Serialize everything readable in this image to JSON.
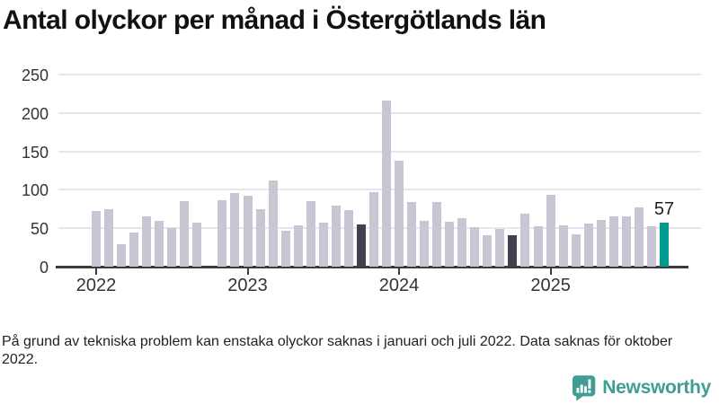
{
  "title": "Antal olyckor per månad i Östergötlands län",
  "footnote": "På grund av tekniska problem kan enstaka olyckor saknas i januari och juli 2022. Data saknas för oktober 2022.",
  "branding": {
    "logo_text": "Newsworthy",
    "logo_icon": "newsworthy-speech-bubble-bar-chart-icon",
    "logo_color": "#3f9d94"
  },
  "colors": {
    "bar_normal": "#c9c6d3",
    "bar_highlight_dark": "#423f50",
    "bar_current": "#009a90",
    "axis": "#3c3c3c",
    "grid": "#e7e6ea",
    "tick_label": "#333333"
  },
  "chart_data": {
    "type": "bar",
    "title": "Antal olyckor per månad i Östergötlands län",
    "xlabel": "",
    "ylabel": "",
    "ylim": [
      0,
      250
    ],
    "y_ticks": [
      0,
      50,
      100,
      150,
      200,
      250
    ],
    "x_tick_labels": [
      "2022",
      "2023",
      "2024",
      "2025"
    ],
    "grid": true,
    "legend": "none",
    "missing_months": [
      "2022-10"
    ],
    "annotation": {
      "month": "2025-10",
      "label": "57"
    },
    "months": [
      {
        "month": "2022-01",
        "value": 72,
        "highlight": "none"
      },
      {
        "month": "2022-02",
        "value": 75,
        "highlight": "none"
      },
      {
        "month": "2022-03",
        "value": 29,
        "highlight": "none"
      },
      {
        "month": "2022-04",
        "value": 44,
        "highlight": "none"
      },
      {
        "month": "2022-05",
        "value": 66,
        "highlight": "none"
      },
      {
        "month": "2022-06",
        "value": 59,
        "highlight": "none"
      },
      {
        "month": "2022-07",
        "value": 50,
        "highlight": "none"
      },
      {
        "month": "2022-08",
        "value": 85,
        "highlight": "none"
      },
      {
        "month": "2022-09",
        "value": 57,
        "highlight": "none"
      },
      {
        "month": "2022-10",
        "value": null,
        "highlight": "missing"
      },
      {
        "month": "2022-11",
        "value": 87,
        "highlight": "none"
      },
      {
        "month": "2022-12",
        "value": 96,
        "highlight": "none"
      },
      {
        "month": "2023-01",
        "value": 92,
        "highlight": "none"
      },
      {
        "month": "2023-02",
        "value": 75,
        "highlight": "none"
      },
      {
        "month": "2023-03",
        "value": 112,
        "highlight": "none"
      },
      {
        "month": "2023-04",
        "value": 47,
        "highlight": "none"
      },
      {
        "month": "2023-05",
        "value": 54,
        "highlight": "none"
      },
      {
        "month": "2023-06",
        "value": 85,
        "highlight": "none"
      },
      {
        "month": "2023-07",
        "value": 57,
        "highlight": "none"
      },
      {
        "month": "2023-08",
        "value": 80,
        "highlight": "none"
      },
      {
        "month": "2023-09",
        "value": 74,
        "highlight": "none"
      },
      {
        "month": "2023-10",
        "value": 55,
        "highlight": "dark"
      },
      {
        "month": "2023-11",
        "value": 97,
        "highlight": "none"
      },
      {
        "month": "2023-12",
        "value": 216,
        "highlight": "none"
      },
      {
        "month": "2024-01",
        "value": 138,
        "highlight": "none"
      },
      {
        "month": "2024-02",
        "value": 84,
        "highlight": "none"
      },
      {
        "month": "2024-03",
        "value": 60,
        "highlight": "none"
      },
      {
        "month": "2024-04",
        "value": 84,
        "highlight": "none"
      },
      {
        "month": "2024-05",
        "value": 58,
        "highlight": "none"
      },
      {
        "month": "2024-06",
        "value": 63,
        "highlight": "none"
      },
      {
        "month": "2024-07",
        "value": 51,
        "highlight": "none"
      },
      {
        "month": "2024-08",
        "value": 41,
        "highlight": "none"
      },
      {
        "month": "2024-09",
        "value": 49,
        "highlight": "none"
      },
      {
        "month": "2024-10",
        "value": 41,
        "highlight": "dark"
      },
      {
        "month": "2024-11",
        "value": 69,
        "highlight": "none"
      },
      {
        "month": "2024-12",
        "value": 52,
        "highlight": "none"
      },
      {
        "month": "2025-01",
        "value": 93,
        "highlight": "none"
      },
      {
        "month": "2025-02",
        "value": 54,
        "highlight": "none"
      },
      {
        "month": "2025-03",
        "value": 42,
        "highlight": "none"
      },
      {
        "month": "2025-04",
        "value": 56,
        "highlight": "none"
      },
      {
        "month": "2025-05",
        "value": 61,
        "highlight": "none"
      },
      {
        "month": "2025-06",
        "value": 65,
        "highlight": "none"
      },
      {
        "month": "2025-07",
        "value": 65,
        "highlight": "none"
      },
      {
        "month": "2025-08",
        "value": 77,
        "highlight": "none"
      },
      {
        "month": "2025-09",
        "value": 52,
        "highlight": "none"
      },
      {
        "month": "2025-10",
        "value": 57,
        "highlight": "current"
      }
    ]
  }
}
